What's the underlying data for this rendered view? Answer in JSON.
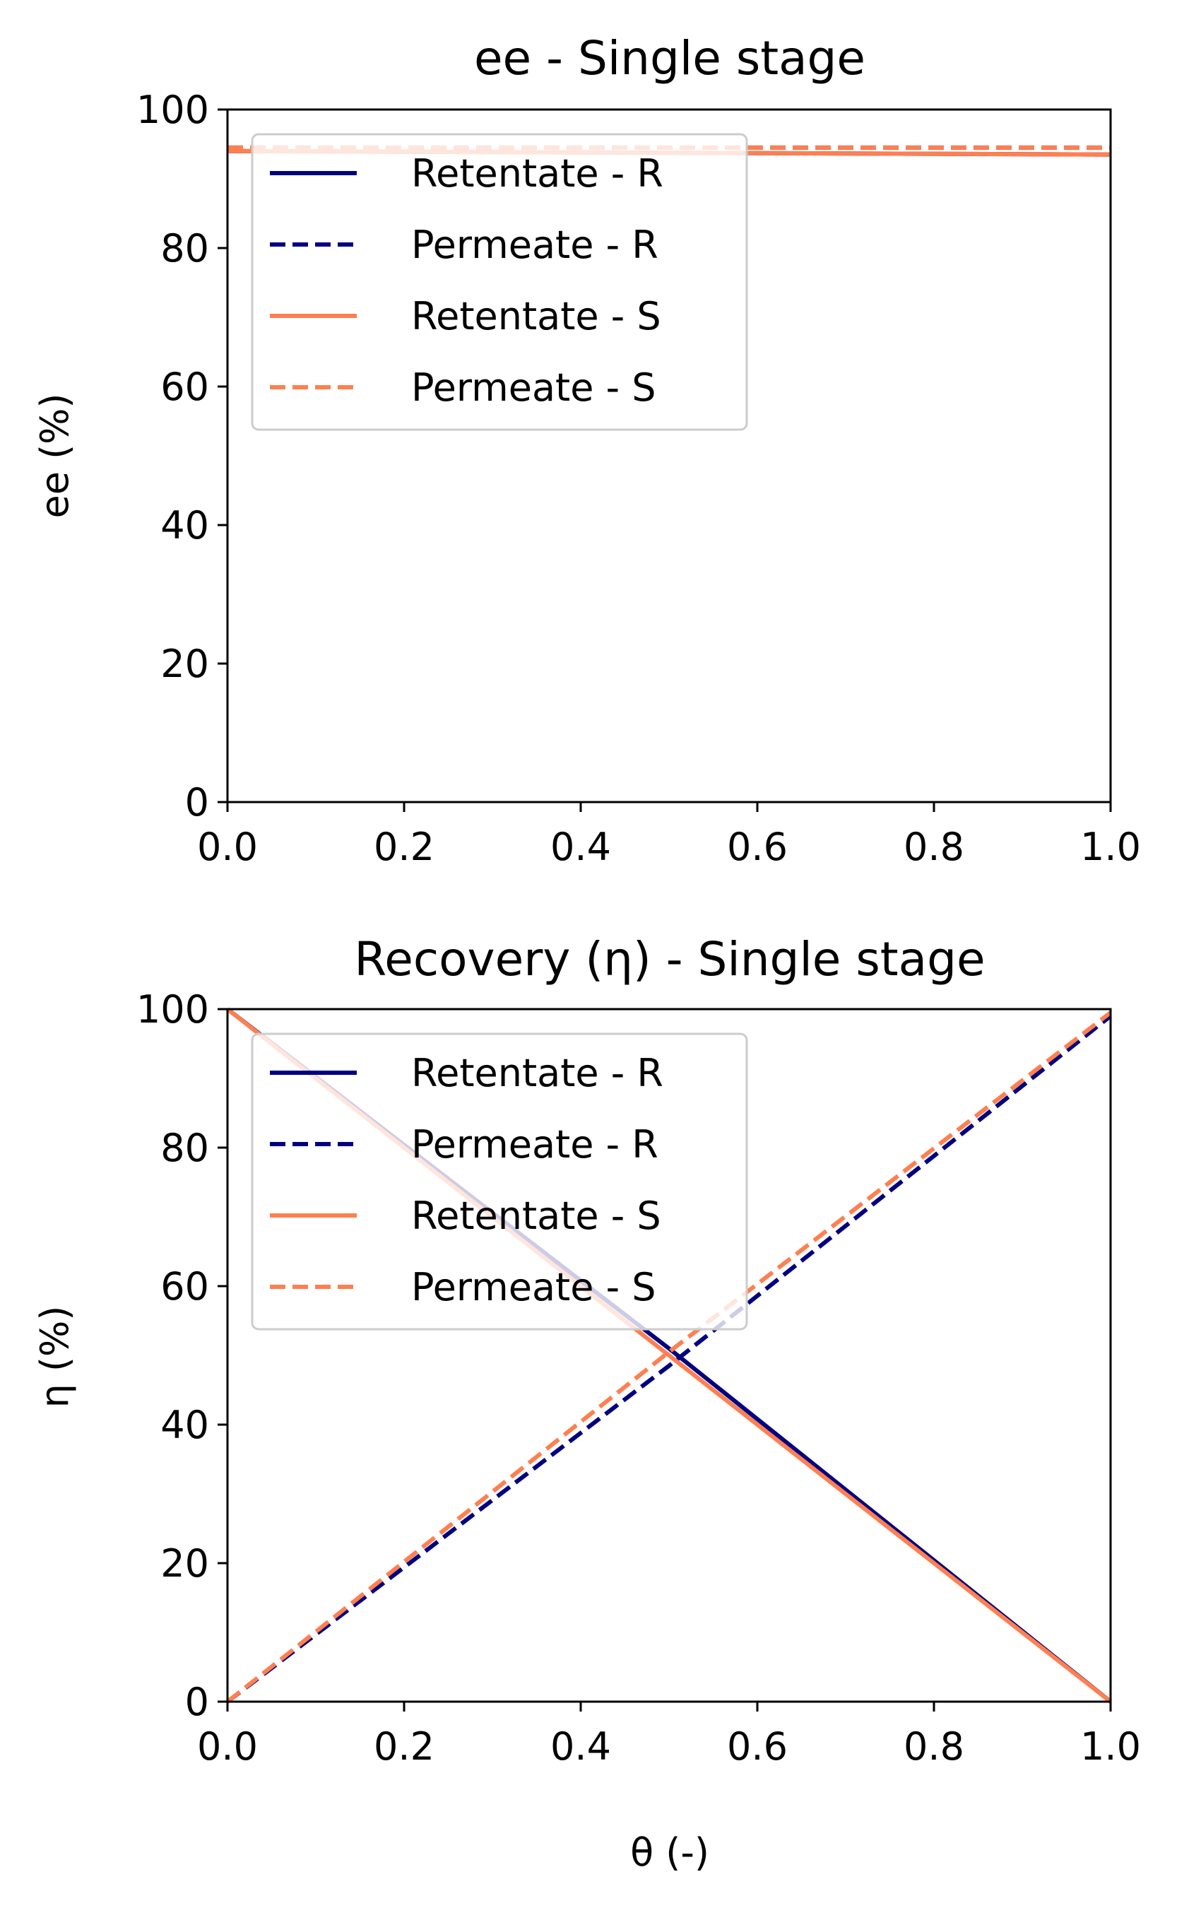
{
  "colors": {
    "R": "#000080",
    "S": "#ff7f50"
  },
  "chart_data": [
    {
      "type": "line",
      "title": "ee - Single stage",
      "xlabel": "",
      "ylabel": "ee (%)",
      "xlim": [
        0,
        1
      ],
      "ylim": [
        0,
        100
      ],
      "xticks": [
        "0.0",
        "0.2",
        "0.4",
        "0.6",
        "0.8",
        "1.0"
      ],
      "yticks": [
        "0",
        "20",
        "40",
        "60",
        "80",
        "100"
      ],
      "grid": false,
      "legend_position": "upper-left",
      "series": [
        {
          "name": "Retentate - R",
          "color": "#000080",
          "dash": "solid",
          "x": [
            0,
            1
          ],
          "y": [
            94.0,
            93.5
          ]
        },
        {
          "name": "Permeate - R",
          "color": "#000080",
          "dash": "dashed",
          "x": [
            0,
            1
          ],
          "y": [
            94.5,
            94.5
          ]
        },
        {
          "name": "Retentate - S",
          "color": "#ff7f50",
          "dash": "solid",
          "x": [
            0,
            1
          ],
          "y": [
            94.0,
            93.5
          ]
        },
        {
          "name": "Permeate - S",
          "color": "#ff7f50",
          "dash": "dashed",
          "x": [
            0,
            1
          ],
          "y": [
            94.5,
            94.5
          ]
        }
      ]
    },
    {
      "type": "line",
      "title": "Recovery (η) - Single stage",
      "xlabel": "θ (-)",
      "ylabel": "η (%)",
      "xlim": [
        0,
        1
      ],
      "ylim": [
        0,
        100
      ],
      "xticks": [
        "0.0",
        "0.2",
        "0.4",
        "0.6",
        "0.8",
        "1.0"
      ],
      "yticks": [
        "0",
        "20",
        "40",
        "60",
        "80",
        "100"
      ],
      "grid": false,
      "legend_position": "upper-left",
      "series": [
        {
          "name": "Retentate - R",
          "color": "#000080",
          "dash": "solid",
          "x": [
            0,
            0.5,
            1
          ],
          "y": [
            100,
            51,
            0
          ]
        },
        {
          "name": "Permeate - R",
          "color": "#000080",
          "dash": "dashed",
          "x": [
            0,
            0.5,
            1
          ],
          "y": [
            0,
            48.5,
            99
          ]
        },
        {
          "name": "Retentate - S",
          "color": "#ff7f50",
          "dash": "solid",
          "x": [
            0,
            0.5,
            1
          ],
          "y": [
            100,
            50,
            0
          ]
        },
        {
          "name": "Permeate - S",
          "color": "#ff7f50",
          "dash": "dashed",
          "x": [
            0,
            0.5,
            1
          ],
          "y": [
            0,
            50.5,
            99.5
          ]
        }
      ]
    }
  ]
}
